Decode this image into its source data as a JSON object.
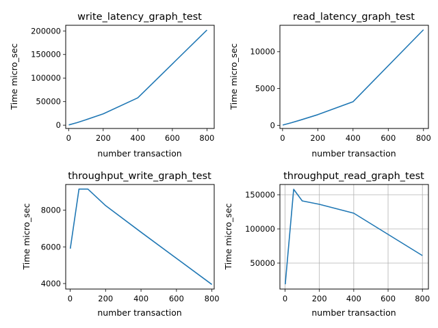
{
  "chart_data": [
    {
      "type": "line",
      "title": "write_latency_graph_test",
      "xlabel": "number transaction",
      "ylabel": "Time micro_sec",
      "xlim": [
        -17,
        842
      ],
      "ylim": [
        -7000,
        212000
      ],
      "xticks": [
        0,
        200,
        400,
        600,
        800
      ],
      "yticks": [
        0,
        50000,
        100000,
        150000,
        200000
      ],
      "grid": false,
      "series": [
        {
          "x": [
            1,
            50,
            100,
            200,
            400,
            800
          ],
          "y": [
            500,
            5500,
            11500,
            24000,
            58000,
            202000
          ]
        }
      ]
    },
    {
      "type": "line",
      "title": "read_latency_graph_test",
      "xlabel": "number transaction",
      "ylabel": "Time micro_sec",
      "xlim": [
        -15,
        828
      ],
      "ylim": [
        -430,
        13600
      ],
      "xticks": [
        0,
        200,
        400,
        600,
        800
      ],
      "yticks": [
        0,
        5000,
        10000
      ],
      "grid": false,
      "series": [
        {
          "x": [
            1,
            50,
            100,
            200,
            400,
            800
          ],
          "y": [
            30,
            350,
            700,
            1450,
            3200,
            13000
          ]
        }
      ]
    },
    {
      "type": "line",
      "title": "throughput_write_graph_test",
      "xlabel": "number transaction",
      "ylabel": "Time micro_sec",
      "xlim": [
        -25,
        813
      ],
      "ylim": [
        3700,
        9400
      ],
      "xticks": [
        0,
        200,
        400,
        600,
        800
      ],
      "yticks": [
        4000,
        6000,
        8000
      ],
      "grid": false,
      "series": [
        {
          "x": [
            1,
            50,
            100,
            200,
            400,
            800
          ],
          "y": [
            5900,
            9150,
            9150,
            8250,
            6800,
            3950
          ]
        }
      ]
    },
    {
      "type": "line",
      "title": "throughput_read_graph_test",
      "xlabel": "number transaction",
      "ylabel": "Time micro_sec",
      "xlim": [
        -30,
        835
      ],
      "ylim": [
        12000,
        165000
      ],
      "xticks": [
        0,
        200,
        400,
        600,
        800
      ],
      "yticks": [
        50000,
        100000,
        150000
      ],
      "grid": true,
      "series": [
        {
          "x": [
            1,
            50,
            100,
            200,
            400,
            800
          ],
          "y": [
            19000,
            158000,
            141000,
            136000,
            123000,
            61000
          ]
        }
      ]
    }
  ],
  "colors": {
    "line": "#1f77b4"
  }
}
